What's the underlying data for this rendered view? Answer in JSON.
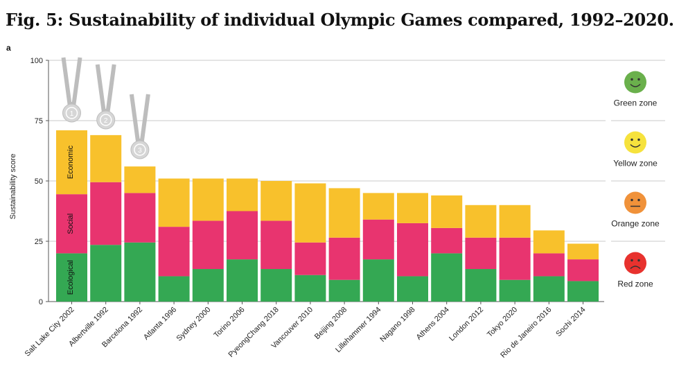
{
  "figure": {
    "title": "Fig. 5: Sustainability of individual Olympic Games compared, 1992–2020.",
    "panel_label": "a"
  },
  "chart_data": {
    "type": "bar",
    "stacked": true,
    "ylabel": "Sustainability score",
    "xlabel": "",
    "ylim": [
      0,
      100
    ],
    "yticks": [
      0,
      25,
      50,
      75,
      100
    ],
    "categories": [
      "Salt Lake City 2002",
      "Albertville 1992",
      "Barcelona 1992",
      "Atlanta 1996",
      "Sydney 2000",
      "Torino 2006",
      "PyeongChang 2018",
      "Vancouver 2010",
      "Beijing 2008",
      "Lillehammer 1994",
      "Nagano 1998",
      "Athens 2004",
      "London 2012",
      "Tokyo 2020",
      "Rio de Janeiro 2016",
      "Sochi 2014"
    ],
    "series": [
      {
        "name": "Ecological",
        "color": "#34a853",
        "values": [
          20,
          23.5,
          24.5,
          10.5,
          13.5,
          17.5,
          13.5,
          11,
          9,
          17.5,
          10.5,
          20,
          13.5,
          9,
          10.5,
          8.5
        ]
      },
      {
        "name": "Social",
        "color": "#e8346f",
        "values": [
          24.5,
          26,
          20.5,
          20.5,
          20,
          20,
          20,
          13.5,
          17.5,
          16.5,
          22,
          10.5,
          13,
          17.5,
          9.5,
          9
        ]
      },
      {
        "name": "Economic",
        "color": "#f8c12c",
        "values": [
          26.5,
          19.5,
          11,
          20,
          17.5,
          13.5,
          16.5,
          24.5,
          20.5,
          11,
          12.5,
          13.5,
          13.5,
          13.5,
          9.5,
          6.5
        ]
      }
    ],
    "medals": [
      {
        "rank": "1",
        "category": "Salt Lake City 2002"
      },
      {
        "rank": "2",
        "category": "Albertville 1992"
      },
      {
        "rank": "3",
        "category": "Barcelona 1992"
      }
    ],
    "zones": [
      {
        "label": "Green zone",
        "color": "#6ab04c",
        "face": "smile",
        "range": [
          75,
          100
        ]
      },
      {
        "label": "Yellow zone",
        "color": "#f6e23d",
        "face": "smile",
        "range": [
          50,
          75
        ]
      },
      {
        "label": "Orange zone",
        "color": "#f0923a",
        "face": "neutral",
        "range": [
          25,
          50
        ]
      },
      {
        "label": "Red zone",
        "color": "#e8322e",
        "face": "frown",
        "range": [
          0,
          25
        ]
      }
    ],
    "grid": "horizontal"
  }
}
